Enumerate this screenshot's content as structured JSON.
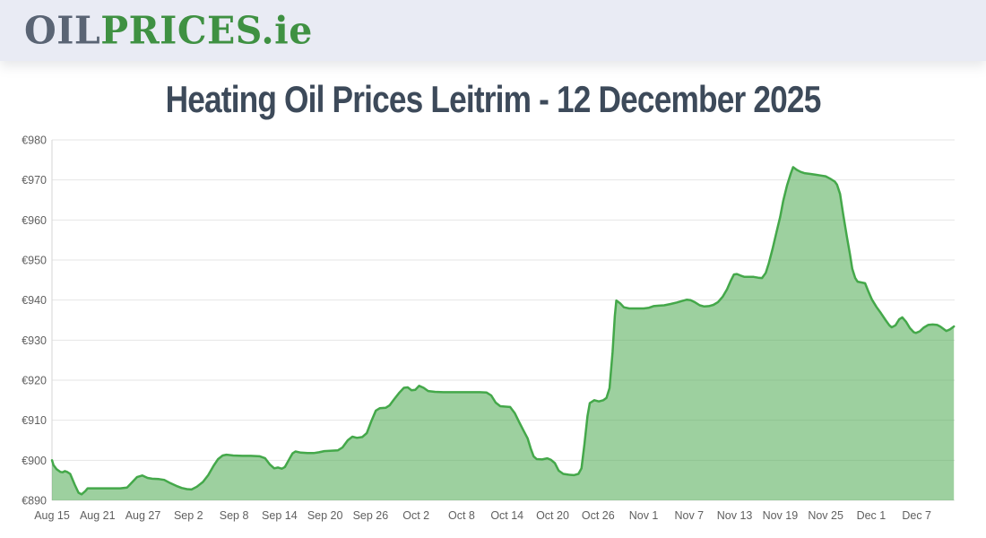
{
  "header": {
    "logo": {
      "oil": "OIL",
      "prices": "PRICES",
      "suffix": ".ie"
    }
  },
  "page": {
    "title": "Heating Oil Prices Leitrim - 12 December 2025"
  },
  "colors": {
    "header_bg": "#e9ebf4",
    "logo_gray": "#5a6474",
    "logo_green": "#3f9142",
    "title_text": "#3d4a5a",
    "line_green": "#44a84a",
    "fill_green": "rgba(77,170,81,0.55)",
    "grid": "#e6e6e6",
    "axis_line": "#d6d6d6",
    "tick_text": "#606060"
  },
  "chart_data": {
    "type": "area",
    "title": "Heating Oil Prices Leitrim - 12 December 2025",
    "currency_prefix": "€",
    "xlabel": "",
    "ylabel": "",
    "ylim": [
      890,
      980
    ],
    "y_tick_step": 10,
    "xlim_days": [
      0,
      119
    ],
    "x_unit": "days since Aug 15",
    "grid": "horizontal",
    "legend": "none",
    "x_ticks": [
      {
        "day": 0,
        "label": "Aug 15"
      },
      {
        "day": 6,
        "label": "Aug 21"
      },
      {
        "day": 12,
        "label": "Aug 27"
      },
      {
        "day": 18,
        "label": "Sep 2"
      },
      {
        "day": 24,
        "label": "Sep 8"
      },
      {
        "day": 30,
        "label": "Sep 14"
      },
      {
        "day": 36,
        "label": "Sep 20"
      },
      {
        "day": 42,
        "label": "Sep 26"
      },
      {
        "day": 48,
        "label": "Oct 2"
      },
      {
        "day": 54,
        "label": "Oct 8"
      },
      {
        "day": 60,
        "label": "Oct 14"
      },
      {
        "day": 66,
        "label": "Oct 20"
      },
      {
        "day": 72,
        "label": "Oct 26"
      },
      {
        "day": 78,
        "label": "Nov 1"
      },
      {
        "day": 84,
        "label": "Nov 7"
      },
      {
        "day": 90,
        "label": "Nov 13"
      },
      {
        "day": 96,
        "label": "Nov 19"
      },
      {
        "day": 102,
        "label": "Nov 25"
      },
      {
        "day": 108,
        "label": "Dec 1"
      },
      {
        "day": 114,
        "label": "Dec 7"
      }
    ],
    "points": [
      [
        0,
        900
      ],
      [
        0.2,
        898.8
      ],
      [
        0.6,
        897.8
      ],
      [
        1.1,
        897.1
      ],
      [
        1.4,
        897
      ],
      [
        1.7,
        897.3
      ],
      [
        2,
        897.1
      ],
      [
        2.4,
        896.6
      ],
      [
        3,
        893.9
      ],
      [
        3.5,
        891.9
      ],
      [
        3.9,
        891.5
      ],
      [
        4.4,
        892.3
      ],
      [
        4.7,
        893
      ],
      [
        6,
        893
      ],
      [
        7.5,
        893
      ],
      [
        9,
        893
      ],
      [
        9.9,
        893.2
      ],
      [
        10.6,
        894.6
      ],
      [
        11.2,
        895.8
      ],
      [
        11.9,
        896.2
      ],
      [
        12.6,
        895.6
      ],
      [
        13.2,
        895.4
      ],
      [
        14.1,
        895.3
      ],
      [
        14.8,
        895.1
      ],
      [
        15.6,
        894.3
      ],
      [
        16.4,
        893.6
      ],
      [
        17.1,
        893.1
      ],
      [
        17.8,
        892.8
      ],
      [
        18.4,
        892.7
      ],
      [
        19.1,
        893.4
      ],
      [
        19.9,
        894.6
      ],
      [
        20.6,
        896.3
      ],
      [
        21.3,
        898.6
      ],
      [
        21.9,
        900.3
      ],
      [
        22.5,
        901.2
      ],
      [
        23,
        901.4
      ],
      [
        23.9,
        901.2
      ],
      [
        25.1,
        901.1
      ],
      [
        26.2,
        901.1
      ],
      [
        27.4,
        901
      ],
      [
        28.1,
        900.5
      ],
      [
        28.7,
        899
      ],
      [
        29.3,
        898
      ],
      [
        29.8,
        898.2
      ],
      [
        30.3,
        897.9
      ],
      [
        30.7,
        898.3
      ],
      [
        31.2,
        900
      ],
      [
        31.7,
        901.7
      ],
      [
        32.1,
        902.2
      ],
      [
        32.8,
        901.9
      ],
      [
        33.7,
        901.8
      ],
      [
        34.5,
        901.8
      ],
      [
        35.2,
        902
      ],
      [
        35.9,
        902.3
      ],
      [
        36.9,
        902.4
      ],
      [
        37.7,
        902.5
      ],
      [
        38.3,
        903.2
      ],
      [
        39,
        905
      ],
      [
        39.6,
        905.9
      ],
      [
        40.2,
        905.6
      ],
      [
        40.9,
        905.8
      ],
      [
        41.5,
        906.8
      ],
      [
        42.1,
        909.8
      ],
      [
        42.7,
        912.4
      ],
      [
        43.2,
        913
      ],
      [
        44,
        913.1
      ],
      [
        44.5,
        913.7
      ],
      [
        45.1,
        915.2
      ],
      [
        45.8,
        916.9
      ],
      [
        46.4,
        918.1
      ],
      [
        46.9,
        918.2
      ],
      [
        47.4,
        917.5
      ],
      [
        47.9,
        917.6
      ],
      [
        48.4,
        918.6
      ],
      [
        49,
        918.1
      ],
      [
        49.6,
        917.3
      ],
      [
        50.5,
        917.1
      ],
      [
        51.6,
        917
      ],
      [
        52.8,
        917
      ],
      [
        54,
        917
      ],
      [
        55.2,
        917
      ],
      [
        56.4,
        917
      ],
      [
        57.3,
        916.9
      ],
      [
        57.9,
        916.2
      ],
      [
        58.5,
        914.4
      ],
      [
        59.1,
        913.5
      ],
      [
        59.8,
        913.4
      ],
      [
        60.4,
        913.3
      ],
      [
        61,
        911.8
      ],
      [
        61.6,
        909.5
      ],
      [
        62.2,
        907.3
      ],
      [
        62.7,
        905.5
      ],
      [
        63.1,
        903
      ],
      [
        63.5,
        901
      ],
      [
        63.9,
        900.3
      ],
      [
        64.6,
        900.2
      ],
      [
        65.3,
        900.5
      ],
      [
        65.8,
        900.1
      ],
      [
        66.3,
        899.3
      ],
      [
        66.8,
        897.4
      ],
      [
        67.4,
        896.6
      ],
      [
        68.1,
        896.4
      ],
      [
        68.8,
        896.3
      ],
      [
        69.4,
        896.6
      ],
      [
        69.8,
        898
      ],
      [
        70.2,
        904
      ],
      [
        70.6,
        911
      ],
      [
        70.9,
        914.3
      ],
      [
        71.5,
        915
      ],
      [
        72.1,
        914.7
      ],
      [
        72.7,
        915
      ],
      [
        73.1,
        915.6
      ],
      [
        73.5,
        918
      ],
      [
        73.9,
        927
      ],
      [
        74.2,
        936
      ],
      [
        74.4,
        939.9
      ],
      [
        74.9,
        939.2
      ],
      [
        75.4,
        938.2
      ],
      [
        76.1,
        937.9
      ],
      [
        77,
        937.9
      ],
      [
        78,
        937.9
      ],
      [
        78.7,
        938.1
      ],
      [
        79.3,
        938.5
      ],
      [
        80,
        938.6
      ],
      [
        80.7,
        938.7
      ],
      [
        81.5,
        939
      ],
      [
        82.4,
        939.4
      ],
      [
        83.1,
        939.8
      ],
      [
        83.7,
        940.1
      ],
      [
        84.2,
        940
      ],
      [
        84.8,
        939.4
      ],
      [
        85.4,
        938.7
      ],
      [
        86,
        938.4
      ],
      [
        86.6,
        938.5
      ],
      [
        87.2,
        938.8
      ],
      [
        87.8,
        939.5
      ],
      [
        88.4,
        940.8
      ],
      [
        89,
        942.7
      ],
      [
        89.5,
        944.9
      ],
      [
        89.9,
        946.4
      ],
      [
        90.3,
        946.5
      ],
      [
        90.8,
        946.1
      ],
      [
        91.3,
        945.8
      ],
      [
        91.9,
        945.8
      ],
      [
        92.5,
        945.8
      ],
      [
        93.1,
        945.6
      ],
      [
        93.6,
        945.5
      ],
      [
        94.1,
        946.8
      ],
      [
        94.5,
        949.2
      ],
      [
        95,
        952.8
      ],
      [
        95.5,
        956.8
      ],
      [
        96,
        960.8
      ],
      [
        96.4,
        964.8
      ],
      [
        96.9,
        968.6
      ],
      [
        97.4,
        971.6
      ],
      [
        97.7,
        973.2
      ],
      [
        98.2,
        972.5
      ],
      [
        98.7,
        972
      ],
      [
        99.2,
        971.7
      ],
      [
        100,
        971.5
      ],
      [
        100.7,
        971.3
      ],
      [
        101.4,
        971.1
      ],
      [
        102,
        970.9
      ],
      [
        102.6,
        970.3
      ],
      [
        103.2,
        969.6
      ],
      [
        103.5,
        968.8
      ],
      [
        103.9,
        966.5
      ],
      [
        104.3,
        961.5
      ],
      [
        104.8,
        955.8
      ],
      [
        105.2,
        951.5
      ],
      [
        105.5,
        947.8
      ],
      [
        105.9,
        945.5
      ],
      [
        106.2,
        944.6
      ],
      [
        106.7,
        944.4
      ],
      [
        107.2,
        944.2
      ],
      [
        107.6,
        942.3
      ],
      [
        108.1,
        940.1
      ],
      [
        108.7,
        938.3
      ],
      [
        109.3,
        936.7
      ],
      [
        109.9,
        935
      ],
      [
        110.4,
        933.7
      ],
      [
        110.7,
        933.2
      ],
      [
        111.2,
        933.7
      ],
      [
        111.7,
        935.2
      ],
      [
        112.1,
        935.7
      ],
      [
        112.6,
        934.6
      ],
      [
        113.1,
        933
      ],
      [
        113.6,
        932
      ],
      [
        113.9,
        931.8
      ],
      [
        114.4,
        932.2
      ],
      [
        114.9,
        933.1
      ],
      [
        115.5,
        933.8
      ],
      [
        116.1,
        933.9
      ],
      [
        116.7,
        933.8
      ],
      [
        117.1,
        933.4
      ],
      [
        117.6,
        932.7
      ],
      [
        117.9,
        932.3
      ],
      [
        118.4,
        932.7
      ],
      [
        118.9,
        933.4
      ]
    ]
  }
}
